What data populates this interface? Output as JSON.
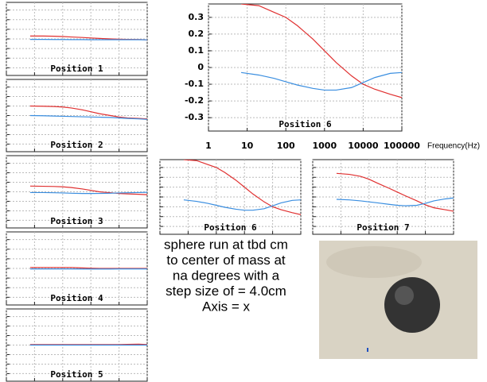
{
  "chart_data": [
    {
      "type": "line",
      "title": "Position 1",
      "log_x": true,
      "grid": true,
      "xlim": [
        1,
        100000
      ],
      "ylim": [
        -0.38,
        0.38
      ],
      "xticks": [
        1,
        10,
        100,
        1000,
        10000,
        100000
      ],
      "yticks": [
        -0.3,
        -0.2,
        -0.1,
        0,
        0.1,
        0.2,
        0.3
      ],
      "x": [
        7,
        20,
        50,
        100,
        200,
        500,
        1000,
        2000,
        5000,
        10000,
        20000,
        50000,
        100000
      ],
      "series": [
        {
          "color": "#e03030",
          "values": [
            0.03,
            0.03,
            0.028,
            0.025,
            0.02,
            0.015,
            0.01,
            0.005,
            0,
            -0.003,
            -0.005,
            -0.006,
            -0.01
          ]
        },
        {
          "color": "#3a8ee0",
          "values": [
            -0.005,
            -0.005,
            -0.006,
            -0.006,
            -0.007,
            -0.007,
            -0.008,
            -0.008,
            -0.008,
            -0.008,
            -0.008,
            -0.008,
            -0.01
          ]
        }
      ]
    },
    {
      "type": "line",
      "title": "Position 2",
      "log_x": true,
      "grid": true,
      "xlim": [
        1,
        100000
      ],
      "ylim": [
        -0.38,
        0.38
      ],
      "xticks": [
        1,
        10,
        100,
        1000,
        10000,
        100000
      ],
      "yticks": [
        -0.3,
        -0.2,
        -0.1,
        0,
        0.1,
        0.2,
        0.3
      ],
      "x": [
        7,
        20,
        50,
        100,
        200,
        500,
        1000,
        2000,
        5000,
        10000,
        20000,
        50000,
        100000
      ],
      "series": [
        {
          "color": "#e03030",
          "values": [
            0.1,
            0.098,
            0.095,
            0.09,
            0.08,
            0.06,
            0.04,
            0.02,
            0,
            -0.015,
            -0.025,
            -0.03,
            -0.035
          ]
        },
        {
          "color": "#3a8ee0",
          "values": [
            0,
            -0.002,
            -0.005,
            -0.008,
            -0.01,
            -0.013,
            -0.015,
            -0.017,
            -0.02,
            -0.025,
            -0.03,
            -0.035,
            -0.04
          ]
        }
      ]
    },
    {
      "type": "line",
      "title": "Position 3",
      "log_x": true,
      "grid": true,
      "xlim": [
        1,
        100000
      ],
      "ylim": [
        -0.38,
        0.38
      ],
      "xticks": [
        1,
        10,
        100,
        1000,
        10000,
        100000
      ],
      "yticks": [
        -0.3,
        -0.2,
        -0.1,
        0,
        0.1,
        0.2,
        0.3
      ],
      "x": [
        7,
        20,
        50,
        100,
        200,
        500,
        1000,
        2000,
        5000,
        10000,
        20000,
        50000,
        100000
      ],
      "series": [
        {
          "color": "#e03030",
          "values": [
            0.06,
            0.058,
            0.056,
            0.052,
            0.045,
            0.03,
            0.015,
            0,
            -0.01,
            -0.018,
            -0.022,
            -0.026,
            -0.03
          ]
        },
        {
          "color": "#3a8ee0",
          "values": [
            -0.008,
            -0.008,
            -0.01,
            -0.012,
            -0.015,
            -0.018,
            -0.018,
            -0.017,
            -0.015,
            -0.012,
            -0.01,
            -0.008,
            -0.005
          ]
        }
      ]
    },
    {
      "type": "line",
      "title": "Position 4",
      "log_x": true,
      "grid": true,
      "xlim": [
        1,
        100000
      ],
      "ylim": [
        -0.38,
        0.38
      ],
      "xticks": [
        1,
        10,
        100,
        1000,
        10000,
        100000
      ],
      "yticks": [
        -0.3,
        -0.2,
        -0.1,
        0,
        0.1,
        0.2,
        0.3
      ],
      "x": [
        7,
        20,
        50,
        100,
        200,
        500,
        1000,
        2000,
        5000,
        10000,
        20000,
        50000,
        100000
      ],
      "series": [
        {
          "color": "#e03030",
          "values": [
            0.01,
            0.01,
            0.01,
            0.01,
            0.01,
            0.005,
            0.002,
            0,
            0,
            0,
            0,
            0,
            0
          ]
        },
        {
          "color": "#3a8ee0",
          "values": [
            -0.005,
            -0.005,
            -0.005,
            -0.005,
            -0.005,
            -0.006,
            -0.006,
            -0.006,
            -0.006,
            -0.005,
            -0.005,
            -0.005,
            -0.005
          ]
        }
      ]
    },
    {
      "type": "line",
      "title": "Position 5",
      "log_x": true,
      "grid": true,
      "xlim": [
        1,
        100000
      ],
      "ylim": [
        -0.38,
        0.38
      ],
      "xticks": [
        1,
        10,
        100,
        1000,
        10000,
        100000
      ],
      "yticks": [
        -0.3,
        -0.2,
        -0.1,
        0,
        0.1,
        0.2,
        0.3
      ],
      "x": [
        7,
        20,
        50,
        100,
        200,
        500,
        1000,
        2000,
        5000,
        10000,
        20000,
        50000,
        100000
      ],
      "series": [
        {
          "color": "#e03030",
          "values": [
            0.005,
            0.005,
            0.005,
            0.005,
            0.005,
            0.005,
            0.005,
            0.005,
            0.005,
            0.005,
            0.008,
            0.01,
            0.005
          ]
        },
        {
          "color": "#3a8ee0",
          "values": [
            0,
            0,
            0,
            0,
            0,
            0,
            0,
            0,
            0,
            0,
            0,
            0,
            0
          ]
        }
      ]
    },
    {
      "type": "line",
      "title": "Position 6",
      "xlabel": "Frequency(Hz)",
      "tick_labels": true,
      "log_x": true,
      "grid": true,
      "xlim": [
        1,
        100000
      ],
      "ylim": [
        -0.38,
        0.38
      ],
      "xticks": [
        1,
        10,
        100,
        1000,
        10000,
        100000
      ],
      "yticks": [
        -0.3,
        -0.2,
        -0.1,
        0,
        0.1,
        0.2,
        0.3
      ],
      "x": [
        7,
        20,
        50,
        100,
        200,
        500,
        1000,
        2000,
        5000,
        10000,
        20000,
        50000,
        100000
      ],
      "series": [
        {
          "color": "#e03030",
          "values": [
            0.38,
            0.37,
            0.33,
            0.3,
            0.25,
            0.17,
            0.1,
            0.03,
            -0.05,
            -0.1,
            -0.13,
            -0.16,
            -0.18
          ]
        },
        {
          "color": "#3a8ee0",
          "values": [
            -0.03,
            -0.045,
            -0.065,
            -0.085,
            -0.105,
            -0.125,
            -0.135,
            -0.135,
            -0.12,
            -0.09,
            -0.06,
            -0.035,
            -0.03
          ]
        }
      ]
    },
    {
      "type": "line",
      "title": "Position 6",
      "log_x": true,
      "grid": true,
      "xlim": [
        1,
        100000
      ],
      "ylim": [
        -0.38,
        0.38
      ],
      "xticks": [
        1,
        10,
        100,
        1000,
        10000,
        100000
      ],
      "yticks": [
        -0.3,
        -0.2,
        -0.1,
        0,
        0.1,
        0.2,
        0.3
      ],
      "x": [
        7,
        20,
        50,
        100,
        200,
        500,
        1000,
        2000,
        5000,
        10000,
        20000,
        50000,
        100000
      ],
      "series": [
        {
          "color": "#e03030",
          "values": [
            0.38,
            0.37,
            0.33,
            0.3,
            0.25,
            0.17,
            0.1,
            0.03,
            -0.05,
            -0.1,
            -0.13,
            -0.16,
            -0.18
          ]
        },
        {
          "color": "#3a8ee0",
          "values": [
            -0.03,
            -0.045,
            -0.065,
            -0.085,
            -0.105,
            -0.125,
            -0.135,
            -0.135,
            -0.12,
            -0.09,
            -0.06,
            -0.035,
            -0.03
          ]
        }
      ]
    },
    {
      "type": "line",
      "title": "Position 7",
      "log_x": true,
      "grid": true,
      "xlim": [
        1,
        100000
      ],
      "ylim": [
        -0.38,
        0.38
      ],
      "xticks": [
        1,
        10,
        100,
        1000,
        10000,
        100000
      ],
      "yticks": [
        -0.3,
        -0.2,
        -0.1,
        0,
        0.1,
        0.2,
        0.3
      ],
      "x": [
        7,
        20,
        50,
        100,
        200,
        500,
        1000,
        2000,
        5000,
        10000,
        20000,
        50000,
        100000
      ],
      "series": [
        {
          "color": "#e03030",
          "values": [
            0.24,
            0.23,
            0.21,
            0.18,
            0.14,
            0.09,
            0.05,
            0.01,
            -0.04,
            -0.08,
            -0.11,
            -0.13,
            -0.145
          ]
        },
        {
          "color": "#3a8ee0",
          "values": [
            -0.024,
            -0.03,
            -0.04,
            -0.05,
            -0.06,
            -0.075,
            -0.085,
            -0.09,
            -0.085,
            -0.065,
            -0.04,
            -0.02,
            -0.01
          ]
        }
      ]
    }
  ],
  "caption": [
    "sphere run at tbd cm",
    "to center of mass at",
    "na degrees with a",
    "step size of = 4.0cm",
    "Axis = x"
  ]
}
